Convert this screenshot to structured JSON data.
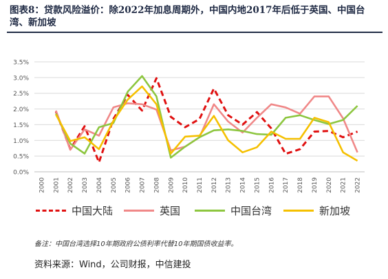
{
  "title": "图表8：贷款风险溢价：除2022年加息周期外，中国内地2017年后低于英国、中国台湾、新加坡",
  "note": "备注：中国台湾选择10年期政府公债利率代替10年期国债收益率。",
  "source": "资料来源：Wind，公司财报，中信建投",
  "chart_data": {
    "type": "line",
    "categories": [
      "2000",
      "2001",
      "2002",
      "2003",
      "2004",
      "2005",
      "2006",
      "2007",
      "2008",
      "2009",
      "2010",
      "2011",
      "2012",
      "2013",
      "2014",
      "2015",
      "2016",
      "2017",
      "2018",
      "2019",
      "2020",
      "2021",
      "2022"
    ],
    "y_ticks": [
      "0.0%",
      "0.5%",
      "1.0%",
      "1.5%",
      "2.0%",
      "2.5%",
      "3.0%",
      "3.5%"
    ],
    "ylim": [
      0,
      3.5
    ],
    "grid": true,
    "legend_position": "bottom",
    "series": [
      {
        "name": "中国大陆",
        "color": "#e01010",
        "dashed": true,
        "values": [
          null,
          1.92,
          0.72,
          1.45,
          0.3,
          1.68,
          2.45,
          1.95,
          2.98,
          1.75,
          1.42,
          1.68,
          2.65,
          1.8,
          1.5,
          1.9,
          1.38,
          0.57,
          0.72,
          1.28,
          1.3,
          1.1,
          1.28
        ]
      },
      {
        "name": "英国",
        "color": "#f08888",
        "dashed": false,
        "values": [
          null,
          1.95,
          0.7,
          1.35,
          1.15,
          2.05,
          2.18,
          2.15,
          1.98,
          0.68,
          0.8,
          1.1,
          2.15,
          1.6,
          1.25,
          1.72,
          2.15,
          2.05,
          1.85,
          2.4,
          2.4,
          1.7,
          0.62
        ]
      },
      {
        "name": "中国台湾",
        "color": "#8dc63f",
        "dashed": false,
        "values": [
          null,
          1.85,
          0.9,
          0.58,
          1.42,
          1.55,
          2.55,
          3.05,
          2.4,
          0.45,
          0.8,
          1.1,
          1.32,
          1.35,
          1.3,
          1.2,
          1.18,
          1.72,
          1.8,
          1.65,
          1.52,
          1.65,
          2.1
        ]
      },
      {
        "name": "新加坡",
        "color": "#f5c000",
        "dashed": false,
        "values": [
          null,
          1.82,
          0.98,
          1.1,
          0.72,
          1.62,
          2.3,
          2.72,
          2.15,
          0.58,
          1.12,
          1.15,
          1.78,
          1.0,
          0.62,
          0.78,
          1.28,
          1.05,
          1.05,
          1.72,
          1.58,
          0.62,
          0.35
        ]
      }
    ]
  }
}
